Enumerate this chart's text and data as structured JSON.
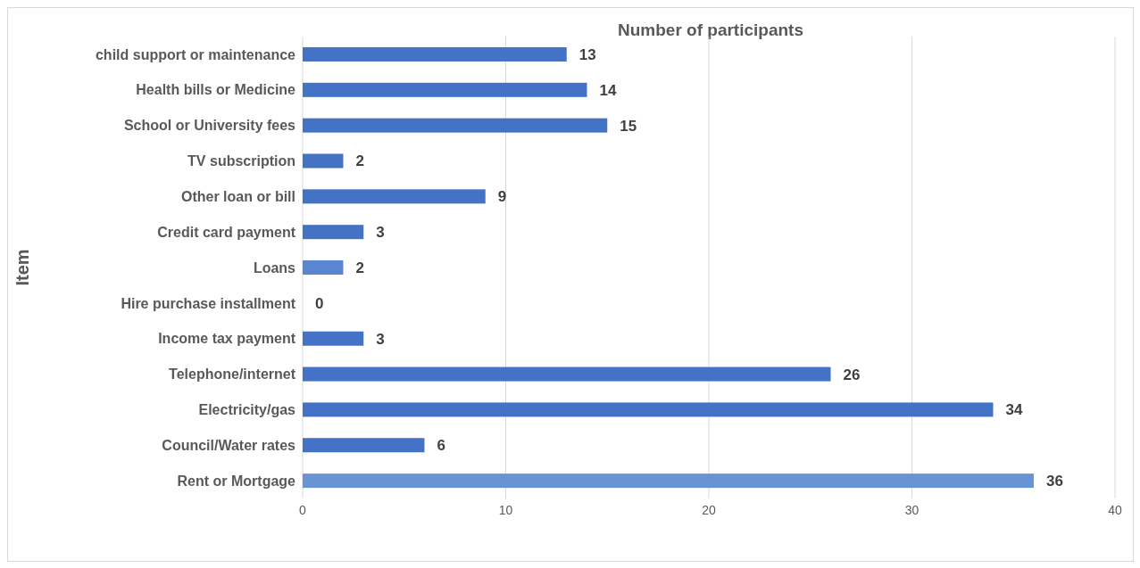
{
  "chart_data": {
    "type": "bar",
    "orientation": "horizontal",
    "xlabel": "Number of participants",
    "ylabel": "Item",
    "categories": [
      "child support or maintenance",
      "Health bills or Medicine",
      "School or University fees",
      "TV subscription",
      "Other loan or bill",
      "Credit card payment",
      "Loans",
      "Hire purchase installment",
      "Income tax payment",
      "Telephone/internet",
      "Electricity/gas",
      "Council/Water rates",
      "Rent or Mortgage"
    ],
    "values": [
      13,
      14,
      15,
      2,
      9,
      3,
      2,
      0,
      3,
      26,
      34,
      6,
      36
    ],
    "colors": [
      "#4472c4",
      "#4472c4",
      "#4472c4",
      "#4472c4",
      "#4472c4",
      "#4472c4",
      "#5a85d0",
      "#4472c4",
      "#4472c4",
      "#4472c4",
      "#4472c4",
      "#4472c4",
      "#6a93d6"
    ],
    "xlim": [
      0,
      40
    ],
    "xticks": [
      0,
      10,
      20,
      30,
      40
    ],
    "grid": "x",
    "data_labels": true
  }
}
